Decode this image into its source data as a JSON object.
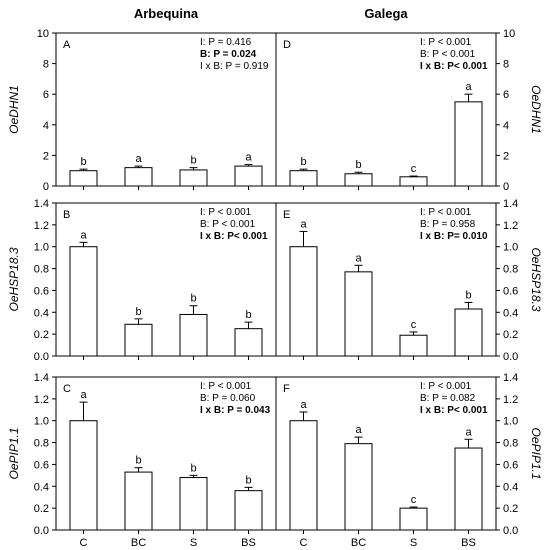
{
  "columns": [
    "Arbequina",
    "Galega"
  ],
  "categories": [
    "C",
    "BC",
    "S",
    "BS"
  ],
  "chart_data": [
    {
      "type": "bar",
      "panel": "A",
      "column": "Arbequina",
      "ylabel": "OeDHN1",
      "ylim": [
        0,
        10
      ],
      "yticks": [
        "0",
        "2",
        "4",
        "6",
        "8",
        "10"
      ],
      "categories": [
        "C",
        "BC",
        "S",
        "BS"
      ],
      "values": [
        1.0,
        1.2,
        1.05,
        1.3
      ],
      "errors": [
        0.1,
        0.1,
        0.15,
        0.1
      ],
      "letters": [
        "b",
        "a",
        "b",
        "a"
      ],
      "stats": [
        {
          "text": "I: P = 0.416",
          "bold": false
        },
        {
          "text": "B: P = 0.024",
          "bold": true
        },
        {
          "text": "I x B: P = 0.919",
          "bold": false
        }
      ]
    },
    {
      "type": "bar",
      "panel": "D",
      "column": "Galega",
      "ylabel": "OeDHN1",
      "ylim": [
        0,
        10
      ],
      "yticks": [
        "0",
        "2",
        "4",
        "6",
        "8",
        "10"
      ],
      "categories": [
        "C",
        "BC",
        "S",
        "BS"
      ],
      "values": [
        1.0,
        0.8,
        0.6,
        5.5
      ],
      "errors": [
        0.1,
        0.1,
        0.05,
        0.5
      ],
      "letters": [
        "b",
        "b",
        "c",
        "a"
      ],
      "stats": [
        {
          "text": "I: P < 0.001",
          "bold": false
        },
        {
          "text": "B: P < 0.001",
          "bold": false
        },
        {
          "text": "I x B: P< 0.001",
          "bold": true
        }
      ]
    },
    {
      "type": "bar",
      "panel": "B",
      "column": "Arbequina",
      "ylabel": "OeHSP18.3",
      "ylim": [
        0,
        1.4
      ],
      "yticks": [
        "0.0",
        "0.2",
        "0.4",
        "0.6",
        "0.8",
        "1.0",
        "1.2",
        "1.4"
      ],
      "categories": [
        "C",
        "BC",
        "S",
        "BS"
      ],
      "values": [
        1.0,
        0.29,
        0.38,
        0.25
      ],
      "errors": [
        0.04,
        0.05,
        0.08,
        0.06
      ],
      "letters": [
        "a",
        "b",
        "b",
        "b"
      ],
      "stats": [
        {
          "text": "I: P < 0.001",
          "bold": false
        },
        {
          "text": "B: P < 0.001",
          "bold": false
        },
        {
          "text": "I x B: P< 0.001",
          "bold": true
        }
      ]
    },
    {
      "type": "bar",
      "panel": "E",
      "column": "Galega",
      "ylabel": "OeHSP18.3",
      "ylim": [
        0,
        1.4
      ],
      "yticks": [
        "0.0",
        "0.2",
        "0.4",
        "0.6",
        "0.8",
        "1.0",
        "1.2",
        "1.4"
      ],
      "categories": [
        "C",
        "BC",
        "S",
        "BS"
      ],
      "values": [
        1.0,
        0.77,
        0.19,
        0.43
      ],
      "errors": [
        0.14,
        0.06,
        0.03,
        0.06
      ],
      "letters": [
        "a",
        "a",
        "c",
        "b"
      ],
      "stats": [
        {
          "text": "I: P < 0.001",
          "bold": false
        },
        {
          "text": "B: P = 0.958",
          "bold": false
        },
        {
          "text": "I x B: P= 0.010",
          "bold": true
        }
      ]
    },
    {
      "type": "bar",
      "panel": "C",
      "column": "Arbequina",
      "ylabel": "OePIP1.1",
      "ylim": [
        0,
        1.4
      ],
      "yticks": [
        "0.0",
        "0.2",
        "0.4",
        "0.6",
        "0.8",
        "1.0",
        "1.2",
        "1.4"
      ],
      "categories": [
        "C",
        "BC",
        "S",
        "BS"
      ],
      "values": [
        1.0,
        0.53,
        0.48,
        0.36
      ],
      "errors": [
        0.17,
        0.04,
        0.02,
        0.03
      ],
      "letters": [
        "a",
        "b",
        "b",
        "b"
      ],
      "stats": [
        {
          "text": "I: P < 0.001",
          "bold": false
        },
        {
          "text": "B: P = 0.060",
          "bold": false
        },
        {
          "text": "I x B: P = 0.043",
          "bold": true
        }
      ]
    },
    {
      "type": "bar",
      "panel": "F",
      "column": "Galega",
      "ylabel": "OePIP1.1",
      "ylim": [
        0,
        1.4
      ],
      "yticks": [
        "0.0",
        "0.2",
        "0.4",
        "0.6",
        "0.8",
        "1.0",
        "1.2",
        "1.4"
      ],
      "categories": [
        "C",
        "BC",
        "S",
        "BS"
      ],
      "values": [
        1.0,
        0.79,
        0.2,
        0.75
      ],
      "errors": [
        0.08,
        0.06,
        0.01,
        0.08
      ],
      "letters": [
        "a",
        "a",
        "c",
        "a"
      ],
      "stats": [
        {
          "text": "I: P < 0.001",
          "bold": false
        },
        {
          "text": "B: P = 0.082",
          "bold": false
        },
        {
          "text": "I x B: P< 0.001",
          "bold": true
        }
      ]
    }
  ]
}
